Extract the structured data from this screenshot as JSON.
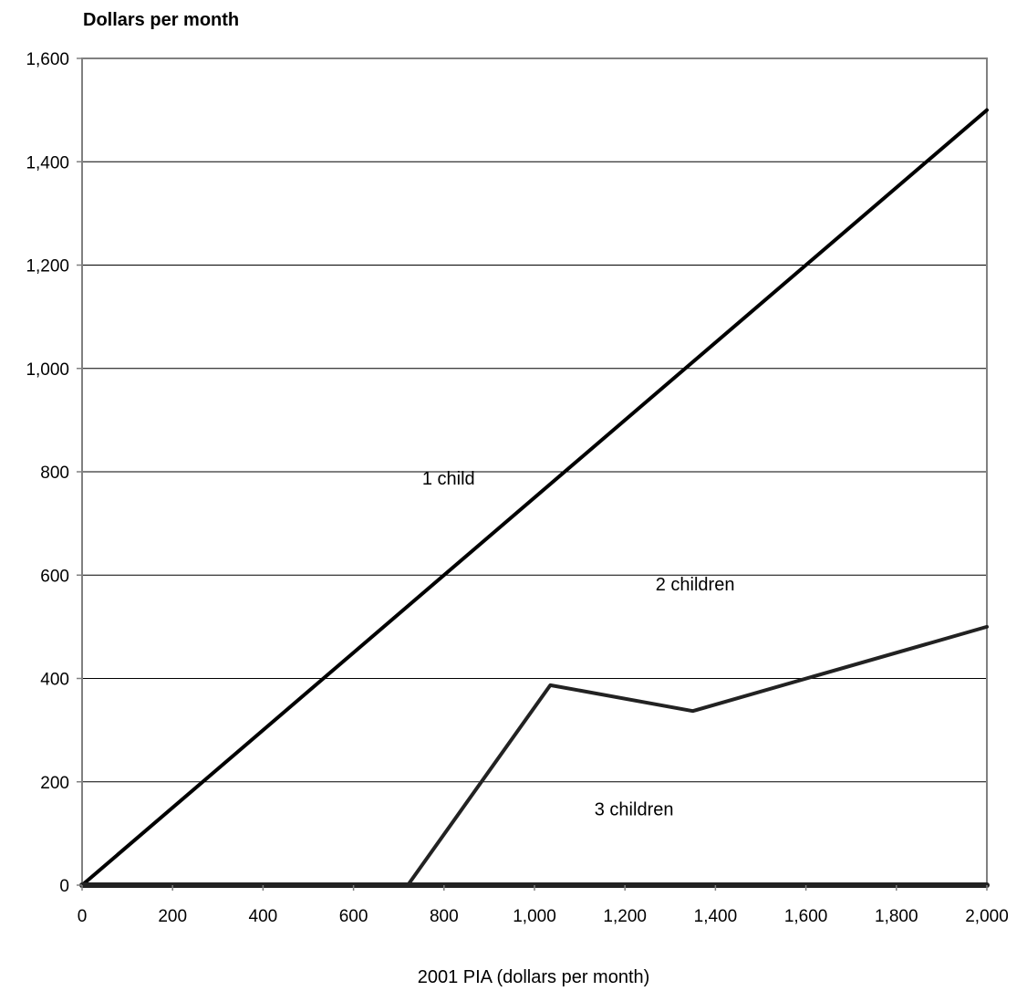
{
  "chart_data": {
    "type": "line",
    "ylabel": "Dollars per month",
    "xlabel": "2001 PIA (dollars per month)",
    "xlim": [
      0,
      2000
    ],
    "ylim": [
      0,
      1600
    ],
    "xticks": [
      0,
      200,
      400,
      600,
      800,
      1000,
      1200,
      1400,
      1600,
      1800,
      2000
    ],
    "xtick_labels": [
      "0",
      "200",
      "400",
      "600",
      "800",
      "1,000",
      "1,200",
      "1,400",
      "1,600",
      "1,800",
      "2,000"
    ],
    "yticks": [
      0,
      200,
      400,
      600,
      800,
      1000,
      1200,
      1400,
      1600
    ],
    "ytick_labels": [
      "0",
      "200",
      "400",
      "600",
      "800",
      "1,000",
      "1,200",
      "1,400",
      "1,600"
    ],
    "grid": "horizontal",
    "series": [
      {
        "name": "1 child",
        "x": [
          0,
          2000
        ],
        "y": [
          0,
          1500
        ]
      },
      {
        "name": "2 children",
        "x": [
          0,
          720,
          1035,
          1350,
          2000
        ],
        "y": [
          0,
          0,
          387,
          337,
          500
        ]
      },
      {
        "name": "3 children",
        "x": [
          0,
          2000
        ],
        "y": [
          0,
          0
        ]
      }
    ],
    "annotations": [
      {
        "text": "1 child",
        "x": 810,
        "y": 775
      },
      {
        "text": "2 children",
        "x": 1355,
        "y": 570
      },
      {
        "text": "3 children",
        "x": 1220,
        "y": 135
      }
    ],
    "colors": {
      "line": "#000000",
      "line2": "#222222",
      "grid": "#000000",
      "axis": "#808080"
    }
  }
}
